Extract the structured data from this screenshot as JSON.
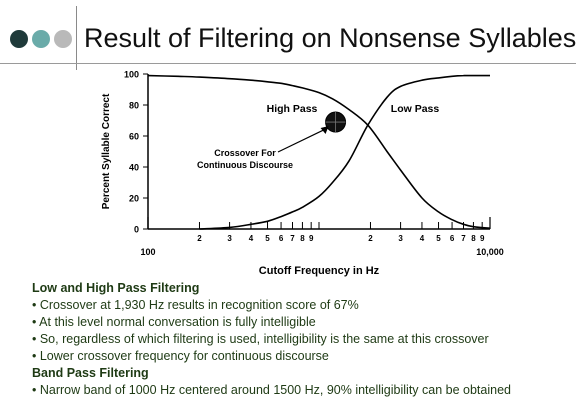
{
  "slide": {
    "title": "Result of Filtering on Nonsense Syllables",
    "dot_colors": [
      "#1f3a3a",
      "#6aaba9",
      "#b9b9b9"
    ]
  },
  "chart_data": {
    "type": "line",
    "xlabel": "Cutoff Frequency in Hz",
    "ylabel": "Percent Syllable Correct",
    "xscale": "log",
    "xlim": [
      100,
      10000
    ],
    "ylim": [
      0,
      100
    ],
    "x_major_ticks": [
      {
        "value": 100,
        "label": "100"
      },
      {
        "value": 10000,
        "label": "10,000"
      }
    ],
    "x_minor_ticks": [
      {
        "value": 200,
        "label": "2"
      },
      {
        "value": 300,
        "label": "3"
      },
      {
        "value": 400,
        "label": "4"
      },
      {
        "value": 500,
        "label": "5"
      },
      {
        "value": 600,
        "label": "6"
      },
      {
        "value": 700,
        "label": "7"
      },
      {
        "value": 800,
        "label": "8"
      },
      {
        "value": 900,
        "label": "9"
      },
      {
        "value": 1000,
        "label": ""
      },
      {
        "value": 2000,
        "label": "2"
      },
      {
        "value": 3000,
        "label": "3"
      },
      {
        "value": 4000,
        "label": "4"
      },
      {
        "value": 5000,
        "label": "5"
      },
      {
        "value": 6000,
        "label": "6"
      },
      {
        "value": 7000,
        "label": "7"
      },
      {
        "value": 8000,
        "label": "8"
      },
      {
        "value": 9000,
        "label": "9"
      }
    ],
    "y_ticks": [
      0,
      20,
      40,
      60,
      80,
      100
    ],
    "series": [
      {
        "name": "High Pass",
        "x": [
          100,
          150,
          200,
          300,
          400,
          500,
          600,
          700,
          800,
          1000,
          1200,
          1500,
          1930,
          2500,
          3000,
          4000,
          5000,
          6000,
          7000,
          8000,
          10000
        ],
        "y": [
          99,
          98.5,
          98,
          97,
          96,
          95,
          94,
          92.5,
          91,
          88,
          84,
          77,
          67,
          50,
          38,
          20,
          11,
          6,
          3,
          1.5,
          0.5
        ]
      },
      {
        "name": "Low Pass",
        "x": [
          200,
          300,
          400,
          500,
          600,
          700,
          800,
          1000,
          1200,
          1500,
          1930,
          2500,
          3000,
          4000,
          5000,
          6000,
          7000,
          8000,
          10000
        ],
        "y": [
          0,
          1,
          3,
          5,
          8,
          11,
          14,
          21,
          30,
          44,
          67,
          85,
          92,
          96,
          97.5,
          98.5,
          99,
          99,
          99
        ]
      }
    ],
    "annotations": [
      {
        "text": "High Pass"
      },
      {
        "text": "Low Pass"
      },
      {
        "text_lines": [
          "Crossover For",
          "Continuous Discourse"
        ],
        "marker_x": 1250,
        "marker_y": 69
      }
    ]
  },
  "text": {
    "head1": "Low and High Pass Filtering",
    "b1": "• Crossover at 1,930 Hz results in recognition score of 67%",
    "b2": "• At this level normal conversation is fully intelligible",
    "b3": "• So, regardless of which filtering is used, intelligibility is the same at this crossover",
    "b4": "• Lower crossover frequency for continuous discourse",
    "head2": "Band Pass Filtering",
    "b5": "• Narrow band of 1000 Hz centered around 1500 Hz, 90% intelligibility can be obtained"
  }
}
